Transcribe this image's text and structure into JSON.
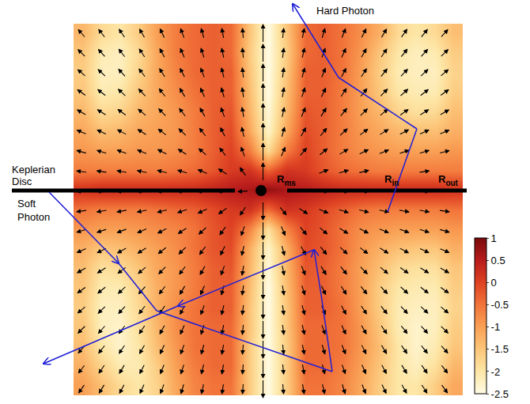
{
  "chart_data": {
    "type": "heatmap",
    "tick_labels": false,
    "z": [
      [
        -1.3,
        -1.8,
        -2.0,
        -1.6,
        -1.0,
        -0.6,
        -0.4,
        -0.3,
        -0.4,
        -1.5,
        -2.5,
        -1.5,
        -0.4,
        -0.3,
        -0.5,
        -0.8,
        -1.2,
        -1.8,
        -2.0,
        -1.8,
        -1.4
      ],
      [
        -1.5,
        -2.1,
        -2.2,
        -1.8,
        -1.1,
        -0.6,
        -0.4,
        -0.3,
        -0.4,
        -1.6,
        -2.5,
        -1.6,
        -0.4,
        -0.3,
        -0.5,
        -0.9,
        -1.5,
        -2.0,
        -2.2,
        -2.1,
        -1.6
      ],
      [
        -1.6,
        -2.2,
        -2.2,
        -1.7,
        -1.1,
        -0.7,
        -0.4,
        -0.3,
        -0.3,
        -1.5,
        -2.5,
        -1.5,
        -0.3,
        -0.3,
        -0.5,
        -1.0,
        -1.6,
        -2.1,
        -2.2,
        -2.2,
        -1.7
      ],
      [
        -1.5,
        -2.1,
        -2.0,
        -1.5,
        -1.1,
        -0.8,
        -0.5,
        -0.3,
        -0.3,
        -1.4,
        -2.5,
        -1.4,
        -0.3,
        -0.3,
        -0.6,
        -1.0,
        -1.5,
        -2.0,
        -2.1,
        -2.1,
        -1.6
      ],
      [
        -1.3,
        -1.8,
        -1.7,
        -1.3,
        -1.1,
        -0.9,
        -0.6,
        -0.3,
        -0.2,
        -1.3,
        -2.4,
        -1.3,
        -0.2,
        -0.3,
        -0.6,
        -1.0,
        -1.3,
        -1.7,
        -1.9,
        -1.8,
        -1.4
      ],
      [
        -1.1,
        -1.4,
        -1.3,
        -1.1,
        -1.0,
        -0.9,
        -0.6,
        -0.3,
        -0.1,
        -1.1,
        -2.3,
        -1.1,
        -0.1,
        -0.3,
        -0.6,
        -0.9,
        -1.1,
        -1.3,
        -1.4,
        -1.4,
        -1.2
      ],
      [
        -0.9,
        -1.0,
        -1.0,
        -0.9,
        -0.9,
        -0.8,
        -0.6,
        -0.3,
        0.0,
        -0.6,
        -1.8,
        -0.6,
        0.0,
        -0.3,
        -0.6,
        -0.8,
        -0.9,
        -1.0,
        -1.0,
        -1.0,
        -0.9
      ],
      [
        -0.6,
        -0.6,
        -0.6,
        -0.6,
        -0.6,
        -0.5,
        -0.4,
        -0.2,
        0.1,
        0.2,
        -0.3,
        0.2,
        0.1,
        -0.2,
        -0.4,
        -0.5,
        -0.6,
        -0.6,
        -0.6,
        -0.6,
        -0.6
      ],
      [
        0.2,
        0.3,
        0.3,
        0.3,
        0.3,
        0.3,
        0.3,
        0.4,
        0.5,
        0.6,
        0.8,
        0.6,
        0.5,
        0.4,
        0.3,
        0.3,
        0.3,
        0.3,
        0.3,
        0.3,
        0.2
      ],
      [
        -0.5,
        -0.6,
        -0.6,
        -0.6,
        -0.5,
        -0.4,
        -0.3,
        -0.1,
        0.1,
        0.2,
        -0.4,
        0.2,
        0.1,
        -0.1,
        -0.3,
        -0.5,
        -0.6,
        -0.6,
        -0.6,
        -0.6,
        -0.5
      ],
      [
        -0.9,
        -1.0,
        -1.0,
        -0.9,
        -0.8,
        -0.7,
        -0.5,
        -0.2,
        0.0,
        -0.7,
        -1.9,
        -0.7,
        0.0,
        -0.2,
        -0.5,
        -0.8,
        -0.9,
        -1.0,
        -1.0,
        -1.0,
        -0.9
      ],
      [
        -1.2,
        -1.5,
        -1.4,
        -1.2,
        -1.0,
        -0.8,
        -0.5,
        -0.2,
        -0.1,
        -1.2,
        -2.3,
        -1.2,
        -0.1,
        -0.2,
        -0.5,
        -0.9,
        -1.2,
        -1.4,
        -1.5,
        -1.5,
        -1.2
      ],
      [
        -1.4,
        -1.9,
        -1.8,
        -1.5,
        -1.1,
        -0.9,
        -0.6,
        -0.3,
        -0.2,
        -1.3,
        -2.4,
        -1.3,
        -0.2,
        -0.3,
        -0.6,
        -1.0,
        -1.4,
        -1.8,
        -1.9,
        -1.9,
        -1.5
      ],
      [
        -1.5,
        -2.1,
        -2.1,
        -1.7,
        -1.2,
        -0.9,
        -0.6,
        -0.3,
        -0.3,
        -1.4,
        -2.5,
        -1.4,
        -0.3,
        -0.3,
        -0.6,
        -1.0,
        -1.6,
        -2.0,
        -2.1,
        -2.1,
        -1.6
      ],
      [
        -1.6,
        -2.2,
        -2.2,
        -1.8,
        -1.2,
        -0.8,
        -0.5,
        -0.3,
        -0.3,
        -1.5,
        -2.5,
        -1.5,
        -0.3,
        -0.3,
        -0.5,
        -1.0,
        -1.6,
        -2.1,
        -2.2,
        -2.2,
        -1.7
      ],
      [
        -1.5,
        -2.2,
        -2.3,
        -1.9,
        -1.3,
        -0.8,
        -0.5,
        -0.4,
        -0.4,
        -1.5,
        -2.5,
        -1.5,
        -0.4,
        -0.4,
        -0.5,
        -0.9,
        -1.5,
        -2.1,
        -2.3,
        -2.2,
        -1.6
      ],
      [
        -1.4,
        -2.0,
        -2.3,
        -2.0,
        -1.4,
        -0.9,
        -0.5,
        -0.4,
        -0.4,
        -1.6,
        -2.5,
        -1.6,
        -0.4,
        -0.4,
        -0.5,
        -0.9,
        -1.4,
        -2.0,
        -2.3,
        -2.1,
        -1.5
      ],
      [
        -1.2,
        -1.7,
        -2.1,
        -2.1,
        -1.6,
        -1.0,
        -0.6,
        -0.4,
        -0.4,
        -1.6,
        -2.5,
        -1.6,
        -0.4,
        -0.4,
        -0.6,
        -1.0,
        -1.5,
        -2.0,
        -2.2,
        -1.9,
        -1.3
      ],
      [
        -1.0,
        -1.4,
        -1.8,
        -2.0,
        -1.7,
        -1.1,
        -0.7,
        -0.5,
        -0.5,
        -1.6,
        -2.5,
        -1.6,
        -0.5,
        -0.5,
        -0.7,
        -1.1,
        -1.6,
        -2.0,
        -2.0,
        -1.6,
        -1.1
      ]
    ],
    "colorbar": {
      "range": [
        -2.5,
        1
      ],
      "ticks": [
        1,
        0.5,
        0,
        -0.5,
        -1,
        -1.5,
        -2,
        -2.5
      ]
    },
    "annotations": {
      "hard_photon": "Hard Photon",
      "disc": "Keplerian Disc",
      "soft_photon": "Soft Photon",
      "r_ms": {
        "text": "R",
        "sub": "ms"
      },
      "r_in": {
        "text": "R",
        "sub": "in"
      },
      "r_out": {
        "text": "R",
        "sub": "out"
      }
    }
  }
}
